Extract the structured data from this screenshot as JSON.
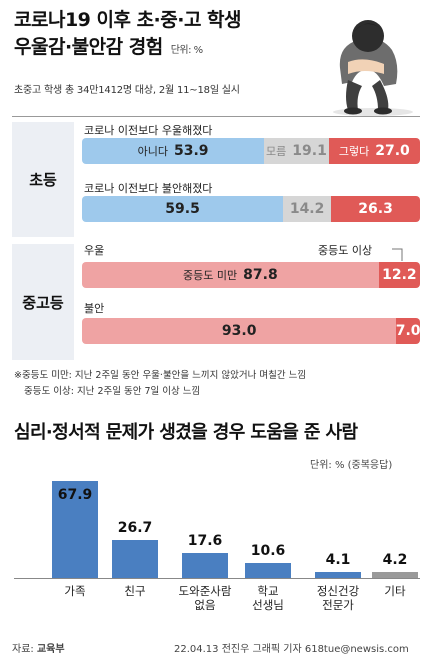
{
  "title_line1": "코로나19 이후 초·중·고 학생",
  "title_line2": "우울감·불안감 경험",
  "title_unit": "단위: %",
  "subtitle": "초중고 학생 총 34만1412명 대상, 2월 11~18일 실시",
  "colors": {
    "blue": "#9ec9ec",
    "gray": "#d6d6d6",
    "red": "#e05a57",
    "pink": "#efa3a3",
    "bar_blue": "#4a7fc1",
    "gray_bar": "#9a9a9a"
  },
  "chart_data": [
    {
      "type": "bar",
      "orientation": "horizontal",
      "stacked": true,
      "group": "초등",
      "questions": [
        {
          "label": "코로나 이전보다 우울해졌다",
          "segments": [
            {
              "name": "아니다",
              "value": 53.9,
              "display": "53.9"
            },
            {
              "name": "모름",
              "value": 19.1,
              "display": "19.1"
            },
            {
              "name": "그렇다",
              "value": 27.0,
              "display": "27.0"
            }
          ]
        },
        {
          "label": "코로나 이전보다 불안해졌다",
          "segments": [
            {
              "name": "",
              "value": 59.5,
              "display": "59.5"
            },
            {
              "name": "",
              "value": 14.2,
              "display": "14.2"
            },
            {
              "name": "",
              "value": 26.3,
              "display": "26.3"
            }
          ]
        }
      ]
    },
    {
      "type": "bar",
      "orientation": "horizontal",
      "stacked": true,
      "group": "중고등",
      "callout": "중등도 이상",
      "questions": [
        {
          "label": "우울",
          "segments": [
            {
              "name": "중등도 미만",
              "value": 87.8,
              "display": "87.8"
            },
            {
              "name": "",
              "value": 12.2,
              "display": "12.2"
            }
          ]
        },
        {
          "label": "불안",
          "segments": [
            {
              "name": "",
              "value": 93.0,
              "display": "93.0"
            },
            {
              "name": "",
              "value": 7.0,
              "display": "7.0"
            }
          ]
        }
      ]
    },
    {
      "type": "bar",
      "title": "심리·정서적 문제가 생겼을 경우 도움을 준 사람",
      "unit": "단위: % (중복응답)",
      "categories": [
        "가족",
        "친구",
        "도와준사람\n없음",
        "학교\n선생님",
        "정신건강\n전문가",
        "기타"
      ],
      "values": [
        67.9,
        26.7,
        17.6,
        10.6,
        4.1,
        4.2
      ],
      "value_labels": [
        "67.9",
        "26.7",
        "17.6",
        "10.6",
        "4.1",
        "4.2"
      ],
      "ylim": [
        0,
        70
      ]
    }
  ],
  "notes": [
    "※중등도 미만: 지난 2주일 동안 우울·불안을 느끼지 않았거나 며칠간 느낌",
    "중등도 이상: 지난 2주일 동안 7일 이상 느낌"
  ],
  "footer_source_label": "자료:",
  "footer_source": "교육부",
  "footer_credit": "22.04.13 전진우 그래픽 기자 618tue@newsis.com"
}
